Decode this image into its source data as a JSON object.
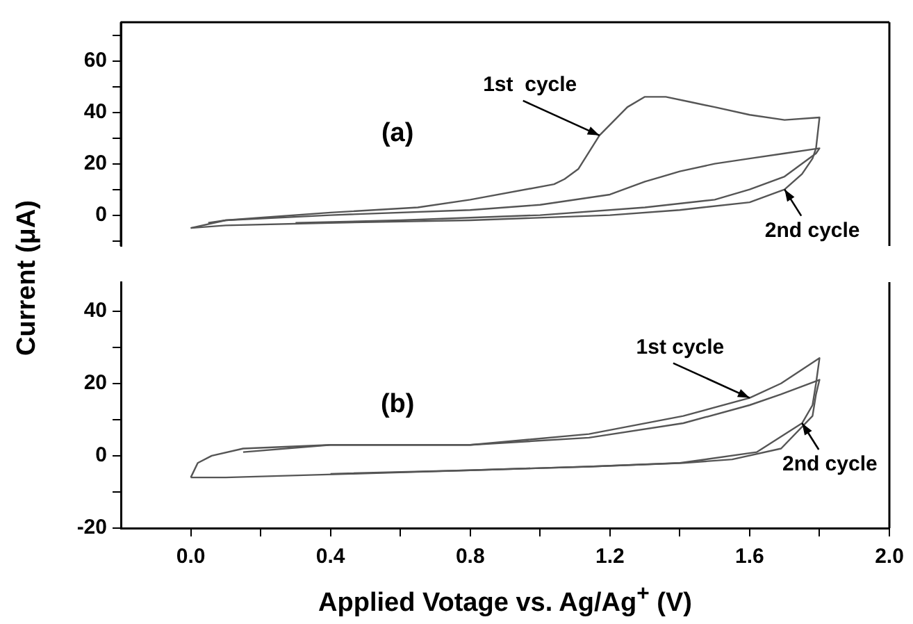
{
  "chart_data": [
    {
      "type": "line",
      "ylabel": "Current  (μA)",
      "marker": "none",
      "tick_labels": "y",
      "xlim": [
        -0.2,
        2.0
      ],
      "ylim": [
        -12,
        75
      ],
      "yticks": [
        {
          "value": -10,
          "label": null
        },
        0,
        {
          "value": 10,
          "label": null
        },
        20,
        {
          "value": 30,
          "label": null
        },
        40,
        {
          "value": 50,
          "label": null
        },
        60,
        {
          "value": 70,
          "label": null
        }
      ],
      "annotations": [
        "(a)",
        {
          "text": "1st  cycle",
          "x": 1.17,
          "y": 31
        },
        {
          "text": "2nd cycle",
          "x": 1.7,
          "y": 10
        }
      ],
      "series": [
        {
          "color": "#555555",
          "x": [
            0.05,
            0.1,
            0.2,
            0.4,
            0.65,
            0.8,
            1.04,
            1.07,
            1.11,
            1.17,
            1.25,
            1.3,
            1.36,
            1.43,
            1.5,
            1.6,
            1.7,
            1.8,
            1.79,
            1.78,
            1.75,
            1.7,
            1.6,
            1.4,
            1.2,
            0.8,
            0.4,
            0.1,
            0
          ],
          "values": [
            -3,
            -2,
            -1,
            1,
            3,
            6,
            12,
            14,
            18,
            31,
            42,
            46,
            46,
            44,
            42,
            39,
            37,
            38,
            26,
            22,
            16,
            10,
            5,
            2,
            0,
            -2,
            -3,
            -4,
            -5
          ]
        },
        {
          "color": "#555555",
          "x": [
            0,
            0.1,
            0.4,
            0.8,
            1.0,
            1.2,
            1.3,
            1.4,
            1.5,
            1.6,
            1.7,
            1.8,
            1.79,
            1.75,
            1.7,
            1.6,
            1.5,
            1.3,
            1.0,
            0.6,
            0.3
          ],
          "values": [
            -5,
            -2,
            0,
            2,
            4,
            8,
            13,
            17,
            20,
            22,
            24,
            26,
            24,
            20,
            15,
            10,
            6,
            3,
            0,
            -2,
            -3
          ]
        }
      ]
    },
    {
      "type": "line",
      "xlabel": "Applied Votage vs. Ag/Ag$^{+}$ (V)",
      "marker": "none",
      "xlim": [
        -0.2,
        2.0
      ],
      "ylim": [
        -20,
        48
      ],
      "xticks": [
        {
          "value": 0,
          "label": "0.0"
        },
        {
          "value": 0.2,
          "label": null
        },
        0.4,
        {
          "value": 0.6,
          "label": null
        },
        0.8,
        {
          "value": 1.0,
          "label": null
        },
        1.2,
        {
          "value": 1.4,
          "label": null
        },
        1.6,
        {
          "value": 1.8,
          "label": null
        },
        {
          "value": 2,
          "label": "2.0"
        }
      ],
      "yticks": [
        -20,
        {
          "value": -10,
          "label": null
        },
        0,
        {
          "value": 10,
          "label": null
        },
        20,
        {
          "value": 30,
          "label": null
        },
        40
      ],
      "annotations": [
        "(b)",
        {
          "text": "1st cycle",
          "x": 1.6,
          "y": 16
        },
        {
          "text": "2nd cycle",
          "x": 1.75,
          "y": 9
        }
      ],
      "series": [
        {
          "color": "#555555",
          "x": [
            0.15,
            0.4,
            0.8,
            1.14,
            1.41,
            1.6,
            1.69,
            1.8,
            1.79,
            1.78,
            1.75,
            1.62,
            1.4,
            1.14,
            0.8,
            0.46,
            0.1,
            0
          ],
          "values": [
            1,
            3,
            3,
            6,
            11,
            16,
            20,
            27,
            20,
            14,
            9,
            1,
            -2,
            -3,
            -4,
            -5,
            -6,
            -6
          ]
        },
        {
          "color": "#555555",
          "x": [
            0,
            0.02,
            0.06,
            0.15,
            0.4,
            0.8,
            1.14,
            1.41,
            1.6,
            1.69,
            1.8,
            1.79,
            1.78,
            1.69,
            1.55,
            1.41,
            1.14,
            0.8,
            0.4
          ],
          "values": [
            -6,
            -2,
            0,
            2,
            3,
            3,
            5,
            9,
            14,
            17,
            21,
            17,
            11,
            2,
            -1,
            -2,
            -3,
            -4,
            -5
          ]
        }
      ]
    }
  ]
}
